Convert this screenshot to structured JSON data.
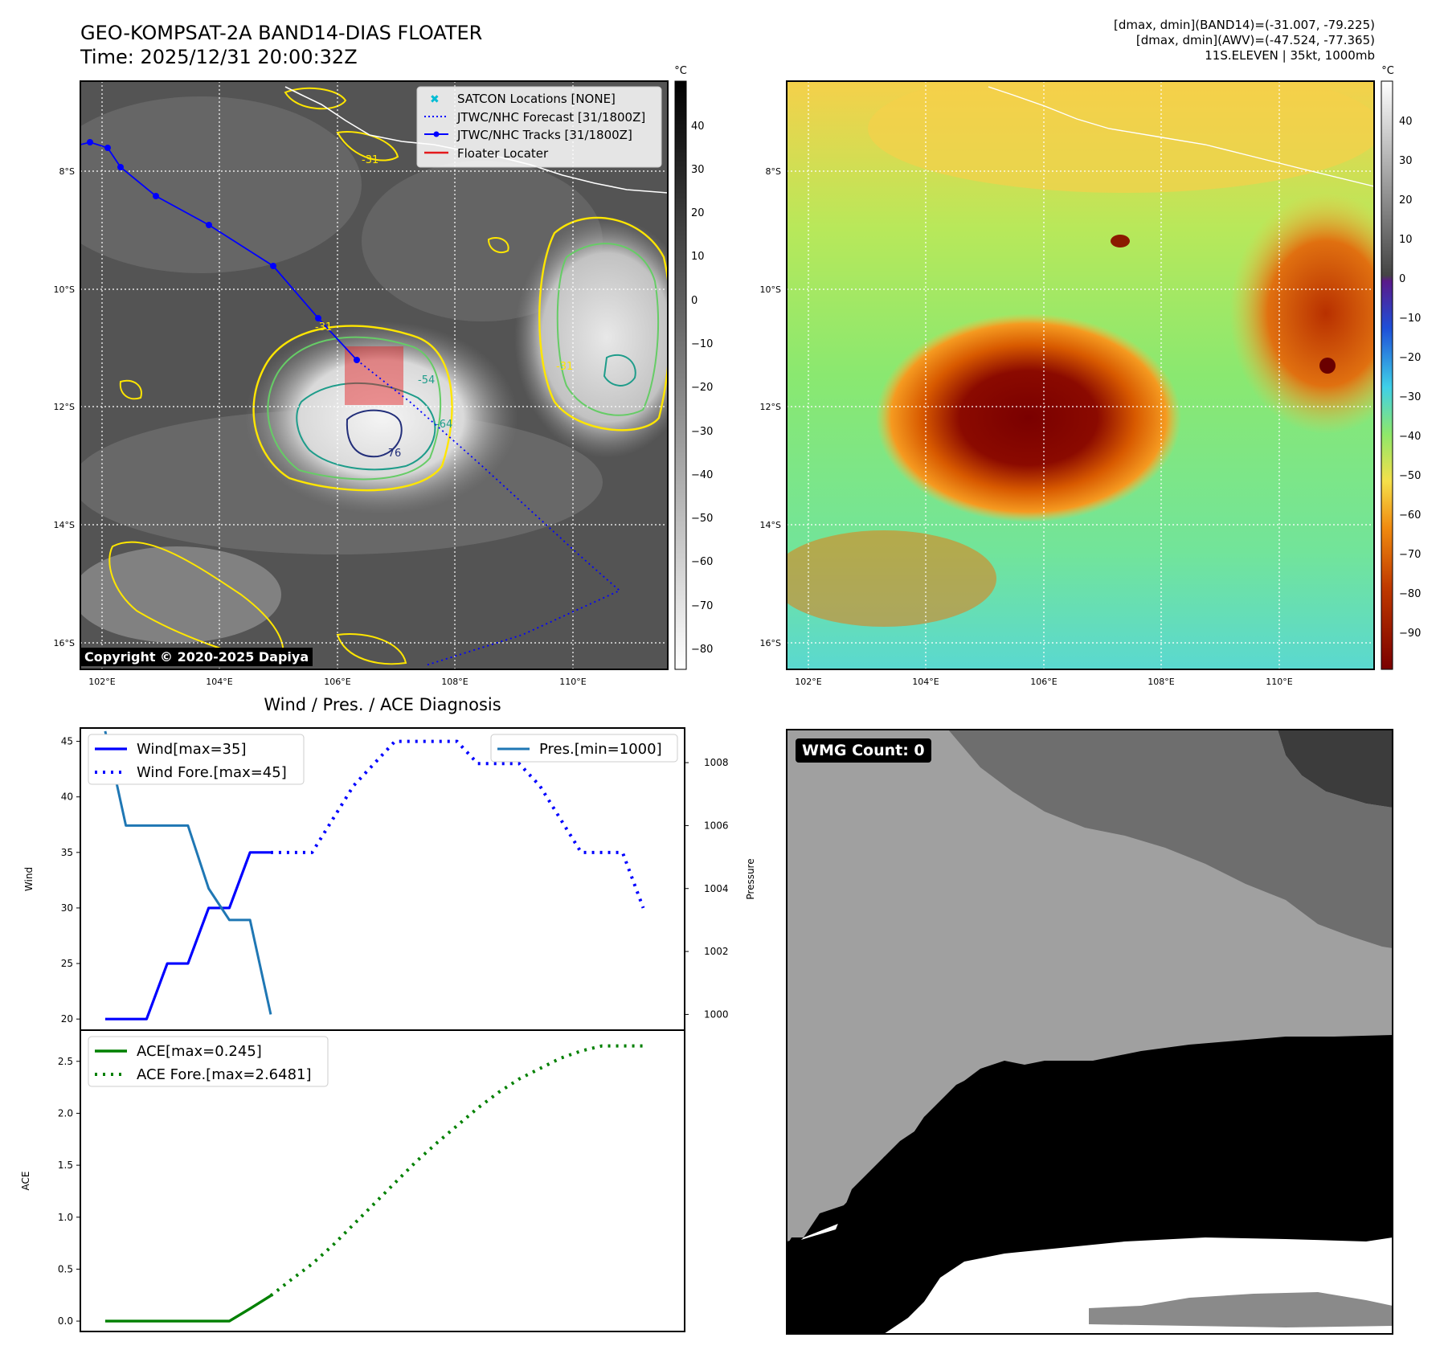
{
  "header": {
    "title_line1": "GEO-KOMPSAT-2A BAND14-DIAS FLOATER",
    "title_line2": "Time: 2025/12/31 20:00:32Z",
    "stats_line1": "[dmax, dmin](BAND14)=(-31.007, -79.225)",
    "stats_line2": "[dmax, dmin](AWV)=(-47.524, -77.365)",
    "stats_line3": "11S.ELEVEN | 35kt, 1000mb"
  },
  "map": {
    "lon_ticks": [
      "102°E",
      "104°E",
      "106°E",
      "108°E",
      "110°E"
    ],
    "lat_ticks": [
      "8°S",
      "10°S",
      "12°S",
      "14°S",
      "16°S"
    ],
    "legend": [
      "SATCON Locations [NONE]",
      "JTWC/NHC Forecast [31/1800Z]",
      "JTWC/NHC Tracks [31/1800Z]",
      "Floater Locater"
    ],
    "contour_labels": [
      "-31",
      "-31",
      "-54",
      "-64",
      "-76",
      "-31"
    ],
    "copyright": "Copyright © 2020-2025 Dapiya",
    "colorbar_unit": "°C",
    "colorbar_ticks": [
      "40",
      "30",
      "20",
      "10",
      "0",
      "−10",
      "−20",
      "−30",
      "−40",
      "−50",
      "−60",
      "−70",
      "−80"
    ],
    "colors": {
      "track": "#0000ff",
      "locater": "#e41a1c",
      "coast": "#ffffff",
      "contour_yellow": "#ffe600",
      "contour_green": "#66cc66",
      "contour_teal": "#1e9c8a",
      "contour_navy": "#232f7a"
    }
  },
  "awv": {
    "colorbar_unit": "°C",
    "colorbar_ticks": [
      "40",
      "30",
      "20",
      "10",
      "0",
      "−10",
      "−20",
      "−30",
      "−40",
      "−50",
      "−60",
      "−70",
      "−80",
      "−90"
    ]
  },
  "wmg": {
    "label": "WMG Count: 0"
  },
  "chart_data": [
    {
      "type": "line",
      "title": "Wind / Pres. / ACE Diagnosis",
      "ylabel": "Wind",
      "y2label": "Pressure",
      "ylim": [
        19,
        46.2
      ],
      "y2lim": [
        999.5,
        1009.1
      ],
      "yticks": [
        "20",
        "25",
        "30",
        "35",
        "40",
        "45"
      ],
      "y2ticks": [
        "1000",
        "1002",
        "1004",
        "1006",
        "1008"
      ],
      "series": [
        {
          "name": "Wind[max=35]",
          "x": [
            0,
            1,
            2,
            3,
            4,
            5,
            6,
            7,
            8
          ],
          "values": [
            20,
            20,
            20,
            25,
            25,
            30,
            30,
            35,
            35
          ]
        },
        {
          "name": "Wind Fore.[max=45]",
          "x": [
            8,
            9,
            10,
            11,
            12,
            13,
            14,
            15,
            16,
            17,
            18,
            19,
            20,
            21,
            22,
            23,
            24,
            25,
            26
          ],
          "values": [
            35,
            35,
            35,
            38,
            41,
            43,
            45,
            45,
            45,
            45,
            43,
            43,
            43,
            41,
            38,
            35,
            35,
            35,
            30
          ]
        },
        {
          "name": "Pres.[min=1000]",
          "axis": "y2",
          "x": [
            0,
            1,
            2,
            3,
            4,
            5,
            6,
            7,
            8
          ],
          "values": [
            1009,
            1006,
            1006,
            1006,
            1006,
            1004,
            1003,
            1003,
            1000
          ]
        }
      ]
    },
    {
      "type": "line",
      "ylabel": "ACE",
      "ylim": [
        -0.1,
        2.8
      ],
      "yticks": [
        "0.0",
        "0.5",
        "1.0",
        "1.5",
        "2.0",
        "2.5"
      ],
      "series": [
        {
          "name": "ACE[max=0.245]",
          "x": [
            0,
            1,
            2,
            3,
            4,
            5,
            6,
            7,
            8
          ],
          "values": [
            0,
            0,
            0,
            0,
            0,
            0,
            0,
            0.12,
            0.245
          ]
        },
        {
          "name": "ACE Fore.[max=2.6481]",
          "x": [
            8,
            9,
            10,
            11,
            12,
            13,
            14,
            15,
            16,
            17,
            18,
            19,
            20,
            21,
            22,
            23,
            24,
            25,
            26
          ],
          "values": [
            0.245,
            0.4,
            0.55,
            0.73,
            0.93,
            1.13,
            1.33,
            1.53,
            1.71,
            1.88,
            2.05,
            2.2,
            2.33,
            2.43,
            2.53,
            2.6,
            2.648,
            2.648,
            2.648
          ]
        }
      ]
    }
  ]
}
